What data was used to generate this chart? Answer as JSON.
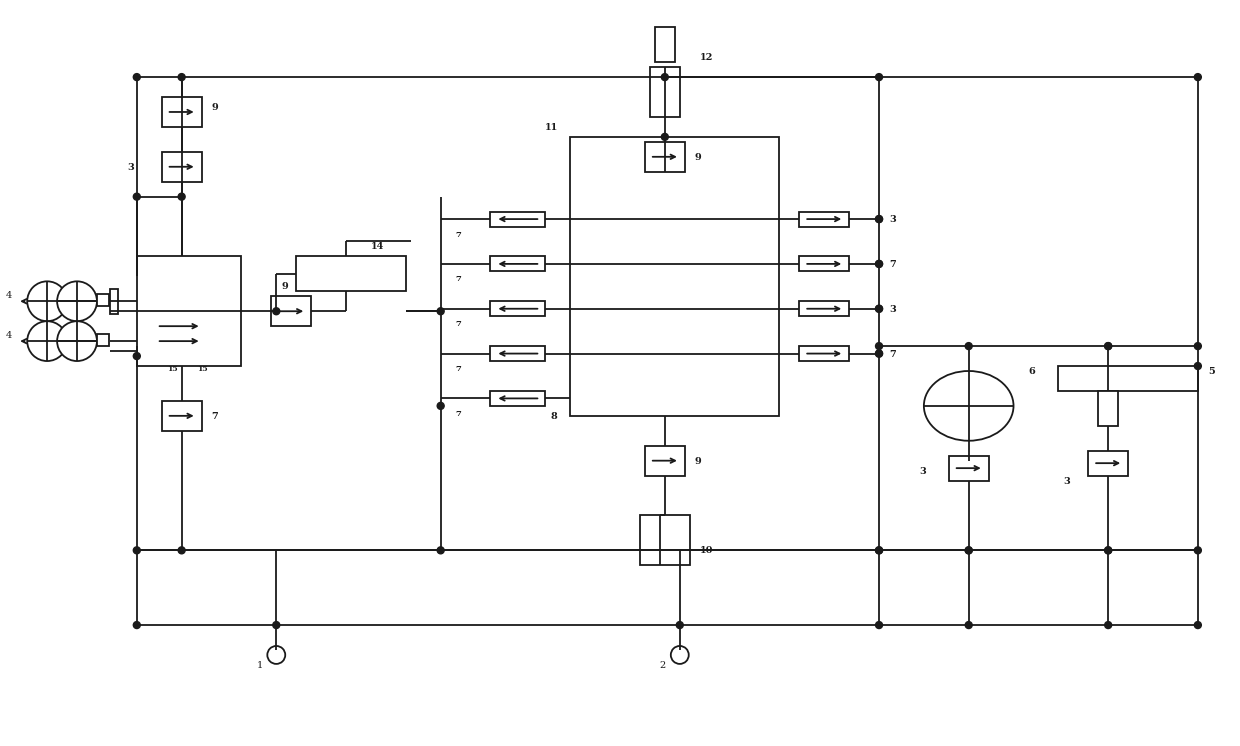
{
  "bg_color": "#ffffff",
  "line_color": "#1a1a1a",
  "lw": 1.3,
  "fig_w": 12.4,
  "fig_h": 7.46,
  "dpi": 100
}
